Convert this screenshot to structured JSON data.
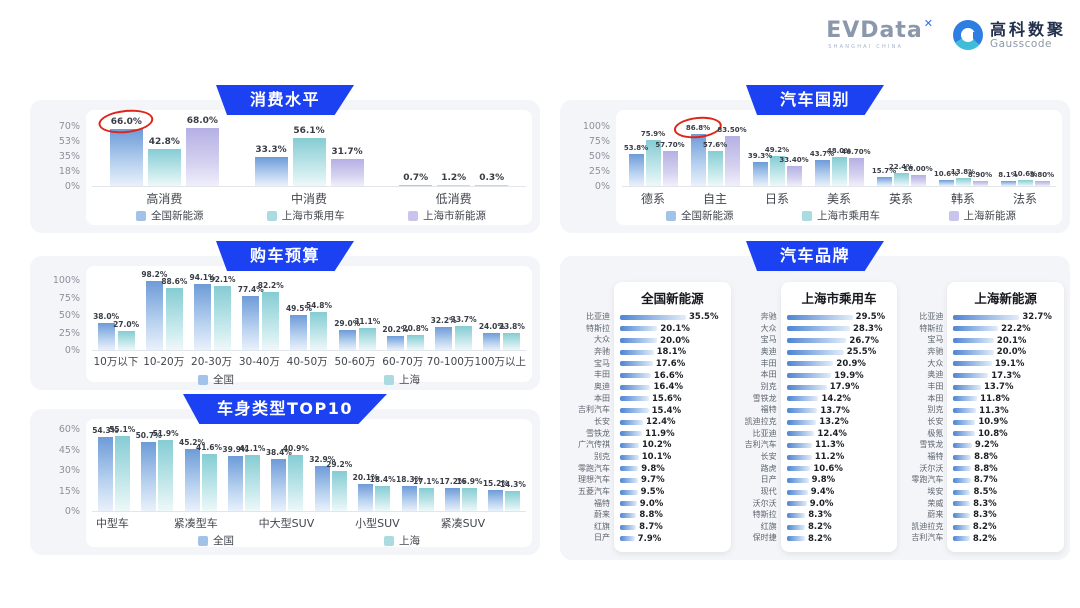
{
  "header": {
    "evdata": {
      "name": "EVData",
      "superscript": "✕",
      "subtitle": "SHANGHAI CHINA"
    },
    "gausscode": {
      "cn_name": "高科数聚",
      "en_name": "Gausscode",
      "icon": "g-ring-icon"
    }
  },
  "colors": {
    "badge_blue": "#1b41f2",
    "series_blue": "#6d9bd8",
    "series_teal": "#85ccd3",
    "series_purple": "#b5b0e4",
    "brand_bar_start": "#4e84d2",
    "circle_red": "#e02417",
    "panel_bg": "#f4f5f8"
  },
  "chart_data": [
    {
      "type": "bar",
      "title": "消费水平",
      "categories": [
        "高消费",
        "中消费",
        "低消费"
      ],
      "series": [
        {
          "name": "全国新能源",
          "values": [
            "66.0",
            "33.3",
            "0.7"
          ]
        },
        {
          "name": "上海市乘用车",
          "values": [
            "42.8",
            "56.1",
            "1.2"
          ]
        },
        {
          "name": "上海市新能源",
          "values": [
            "68.0",
            "31.7",
            "0.3"
          ]
        }
      ],
      "ylim": [
        0,
        70
      ],
      "yticks": [
        "70%",
        "53%",
        "35%",
        "18%",
        "0%"
      ],
      "legend_position": "bottom",
      "grid": false,
      "annotation_circled": {
        "series": 0,
        "index": 0,
        "text": "66.0%"
      }
    },
    {
      "type": "bar",
      "title": "购车预算",
      "categories": [
        "10万以下",
        "10-20万",
        "20-30万",
        "30-40万",
        "40-50万",
        "50-60万",
        "60-70万",
        "70-100万",
        "100万以上"
      ],
      "series": [
        {
          "name": "全国",
          "values": [
            "38.0",
            "98.2",
            "94.1",
            "77.4",
            "49.5",
            "29.0",
            "20.2",
            "32.2",
            "24.0"
          ]
        },
        {
          "name": "上海",
          "values": [
            "27.0",
            "88.6",
            "92.1",
            "82.2",
            "54.8",
            "31.1",
            "20.8",
            "33.7",
            "23.8"
          ]
        }
      ],
      "ylim": [
        0,
        100
      ],
      "yticks": [
        "100%",
        "75%",
        "50%",
        "25%",
        "0%"
      ],
      "legend_position": "bottom",
      "grid": false
    },
    {
      "type": "bar",
      "title": "车身类型TOP10",
      "categories": [
        "中型车",
        "",
        "紧凑型车",
        "",
        "中大型SUV",
        "",
        "小型SUV",
        "",
        "紧凑SUV",
        ""
      ],
      "series": [
        {
          "name": "全国",
          "values": [
            "54.3",
            "50.7",
            "45.2",
            "39.9",
            "38.4",
            "32.9",
            "20.1",
            "18.3",
            "17.2",
            "15.2"
          ]
        },
        {
          "name": "上海",
          "values": [
            "55.1",
            "51.9",
            "41.6",
            "41.1",
            "40.9",
            "29.2",
            "18.4",
            "17.1",
            "16.9",
            "14.3"
          ]
        }
      ],
      "ylim": [
        0,
        60
      ],
      "yticks": [
        "60%",
        "45%",
        "30%",
        "15%",
        "0%"
      ],
      "legend_position": "bottom",
      "grid": false
    },
    {
      "type": "bar",
      "title": "汽车国别",
      "categories": [
        "德系",
        "自主",
        "日系",
        "美系",
        "英系",
        "韩系",
        "法系"
      ],
      "series": [
        {
          "name": "全国新能源",
          "values": [
            "53.8",
            "86.8",
            "39.3",
            "43.7",
            "15.7",
            "10.6",
            "8.1"
          ]
        },
        {
          "name": "上海市乘用车",
          "values": [
            "75.9",
            "57.6",
            "49.2",
            "48.0",
            "22.4",
            "13.8",
            "10.6"
          ]
        },
        {
          "name": "上海新能源",
          "values": [
            "57.70",
            "83.50",
            "33.40",
            "46.70",
            "18.00",
            "8.90",
            "8.80"
          ]
        }
      ],
      "ylim": [
        0,
        100
      ],
      "yticks": [
        "100%",
        "75%",
        "50%",
        "25%",
        "0%"
      ],
      "legend_position": "bottom",
      "grid": false,
      "annotation_circled": {
        "series": 0,
        "index": 1,
        "text": "86.8%"
      }
    },
    {
      "type": "table",
      "title": "汽车品牌",
      "lists": [
        {
          "title": "全国新能源",
          "items": [
            [
              "比亚迪",
              "35.5"
            ],
            [
              "特斯拉",
              "20.1"
            ],
            [
              "大众",
              "20.0"
            ],
            [
              "奔驰",
              "18.1"
            ],
            [
              "宝马",
              "17.6"
            ],
            [
              "丰田",
              "16.6"
            ],
            [
              "奥迪",
              "16.4"
            ],
            [
              "本田",
              "15.6"
            ],
            [
              "吉利汽车",
              "15.4"
            ],
            [
              "长安",
              "12.4"
            ],
            [
              "雪铁龙",
              "11.9"
            ],
            [
              "广汽传祺",
              "10.2"
            ],
            [
              "别克",
              "10.1"
            ],
            [
              "零跑汽车",
              "9.8"
            ],
            [
              "理想汽车",
              "9.7"
            ],
            [
              "五菱汽车",
              "9.5"
            ],
            [
              "福特",
              "9.0"
            ],
            [
              "蔚来",
              "8.8"
            ],
            [
              "红旗",
              "8.7"
            ],
            [
              "日产",
              "7.9"
            ]
          ]
        },
        {
          "title": "上海市乘用车",
          "items": [
            [
              "奔驰",
              "29.5"
            ],
            [
              "大众",
              "28.3"
            ],
            [
              "宝马",
              "26.7"
            ],
            [
              "奥迪",
              "25.5"
            ],
            [
              "丰田",
              "20.9"
            ],
            [
              "本田",
              "19.9"
            ],
            [
              "别克",
              "17.9"
            ],
            [
              "雪铁龙",
              "14.2"
            ],
            [
              "福特",
              "13.7"
            ],
            [
              "凯迪拉克",
              "13.2"
            ],
            [
              "比亚迪",
              "12.4"
            ],
            [
              "吉利汽车",
              "11.3"
            ],
            [
              "长安",
              "11.2"
            ],
            [
              "路虎",
              "10.6"
            ],
            [
              "日产",
              "9.8"
            ],
            [
              "现代",
              "9.4"
            ],
            [
              "沃尔沃",
              "9.0"
            ],
            [
              "特斯拉",
              "8.3"
            ],
            [
              "红旗",
              "8.2"
            ],
            [
              "保时捷",
              "8.2"
            ]
          ]
        },
        {
          "title": "上海新能源",
          "items": [
            [
              "比亚迪",
              "32.7"
            ],
            [
              "特斯拉",
              "22.2"
            ],
            [
              "宝马",
              "20.1"
            ],
            [
              "奔驰",
              "20.0"
            ],
            [
              "大众",
              "19.1"
            ],
            [
              "奥迪",
              "17.3"
            ],
            [
              "丰田",
              "13.7"
            ],
            [
              "本田",
              "11.8"
            ],
            [
              "别克",
              "11.3"
            ],
            [
              "长安",
              "10.9"
            ],
            [
              "极氪",
              "10.8"
            ],
            [
              "雪铁龙",
              "9.2"
            ],
            [
              "福特",
              "8.8"
            ],
            [
              "沃尔沃",
              "8.8"
            ],
            [
              "零跑汽车",
              "8.7"
            ],
            [
              "埃安",
              "8.5"
            ],
            [
              "荣威",
              "8.3"
            ],
            [
              "蔚来",
              "8.3"
            ],
            [
              "凯迪拉克",
              "8.2"
            ],
            [
              "吉利汽车",
              "8.2"
            ]
          ]
        }
      ]
    }
  ]
}
